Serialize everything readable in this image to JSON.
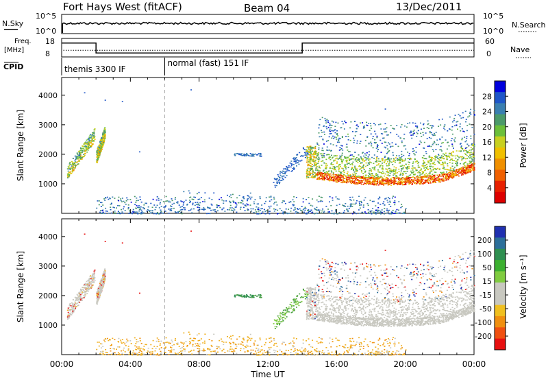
{
  "header": {
    "title": "Fort Hays West (fitACF)",
    "beam": "Beam 04",
    "date": "13/Dec/2011"
  },
  "strip_nsky": {
    "left_label": "N.Sky",
    "left_ticks": [
      "10^5",
      "10^0"
    ],
    "right_label": "N.Search",
    "right_ticks": [
      "10^5",
      "10^0"
    ]
  },
  "strip_freq": {
    "left_label_line1": "Freq.",
    "left_label_line2": "[MHz]",
    "left_ticks": [
      "18",
      "8"
    ],
    "right_label": "Nave",
    "right_ticks": [
      "60",
      "0"
    ],
    "freq_steps": [
      {
        "t0": 0.0,
        "t1": 2.0,
        "mhz": 16.0
      },
      {
        "t0": 2.0,
        "t1": 14.0,
        "mhz": 10.0
      },
      {
        "t0": 14.0,
        "t1": 24.0,
        "mhz": 16.0
      }
    ],
    "nave_level": 22
  },
  "cpid": {
    "label": "CPID",
    "segments": [
      {
        "t0": 0.0,
        "name": "themis 3300 IF"
      },
      {
        "t0": 6.0,
        "name": "normal (fast) 151 IF"
      }
    ]
  },
  "chart_data": [
    {
      "type": "heatmap",
      "panel": "power",
      "ylabel": "Slant Range [km]",
      "xlim": [
        0,
        24
      ],
      "ylim": [
        0,
        4600
      ],
      "yticks": [
        1000,
        2000,
        3000,
        4000
      ],
      "colorbar": {
        "label": "Power [dB]",
        "ticks": [
          "4",
          "8",
          "12",
          "16",
          "20",
          "24",
          "28"
        ],
        "colors": [
          "#0000dd",
          "#1e56c8",
          "#3a7fb0",
          "#4b9a6a",
          "#6cbf3a",
          "#c8d020",
          "#f0c000",
          "#f09000",
          "#f06000",
          "#e82000",
          "#dd0000"
        ]
      }
    },
    {
      "type": "heatmap",
      "panel": "velocity",
      "ylabel": "Slant Range [km]",
      "xlim": [
        0,
        24
      ],
      "ylim": [
        0,
        4600
      ],
      "yticks": [
        1000,
        2000,
        3000,
        4000
      ],
      "xticks": [
        "00:00",
        "04:00",
        "08:00",
        "12:00",
        "16:00",
        "20:00",
        "00:00"
      ],
      "xlabel": "Time UT",
      "colorbar": {
        "label": "Velocity [m s⁻¹]",
        "ticks": [
          "200",
          "100",
          "50",
          "15",
          "-15",
          "-50",
          "-100",
          "-200"
        ],
        "colors": [
          "#2030b0",
          "#2c6f9a",
          "#2e8f50",
          "#3cb030",
          "#80cc40",
          "#c8c8c0",
          "#c8c8c0",
          "#f0c020",
          "#f09010",
          "#f05010",
          "#e81010"
        ]
      }
    }
  ],
  "scatter_regions": [
    {
      "t0": 0.3,
      "t1": 1.9,
      "r0": 1400,
      "r1": 2900,
      "kind": "band_rising",
      "pw": [
        8,
        16
      ],
      "vel": "mixed_ground"
    },
    {
      "t0": 2.0,
      "t1": 2.5,
      "r0": 1900,
      "r1": 2900,
      "kind": "band_rising",
      "pw": [
        8,
        16
      ],
      "vel": "mixed_ground"
    },
    {
      "t0": 10.0,
      "t1": 11.6,
      "r0": 1950,
      "r1": 2050,
      "kind": "flat",
      "pw": [
        4,
        8
      ],
      "vel": "green"
    },
    {
      "t0": 12.3,
      "t1": 14.3,
      "r0": 900,
      "r1": 2300,
      "kind": "sparse",
      "pw": [
        4,
        8
      ],
      "vel": "green"
    },
    {
      "t0": 14.2,
      "t1": 24.0,
      "r0": 1000,
      "r1": 3000,
      "kind": "main",
      "pw": [
        12,
        28
      ],
      "vel": "ground"
    },
    {
      "t0": 2.0,
      "t1": 20.0,
      "r0": 0,
      "r1": 600,
      "kind": "near",
      "pw": [
        4,
        12
      ],
      "vel": "orange"
    }
  ]
}
